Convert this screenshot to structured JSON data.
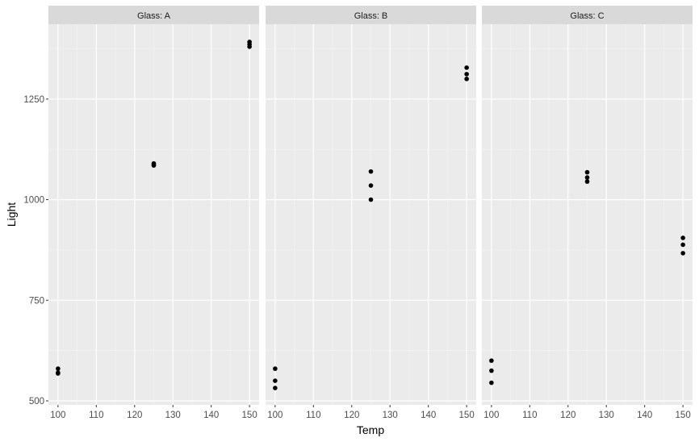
{
  "chart_data": {
    "type": "scatter",
    "title": "",
    "xlabel": "Temp",
    "ylabel": "Light",
    "facet_variable": "Glass",
    "xlim": [
      97.5,
      152.5
    ],
    "ylim": [
      490,
      1436
    ],
    "x_ticks": [
      100,
      110,
      120,
      130,
      140,
      150
    ],
    "y_ticks": [
      500,
      750,
      1000,
      1250
    ],
    "grid": true,
    "legend": "none",
    "panels": [
      {
        "label": "Glass: A",
        "points": [
          {
            "x": 100,
            "y": 580
          },
          {
            "x": 100,
            "y": 568
          },
          {
            "x": 100,
            "y": 570
          },
          {
            "x": 125,
            "y": 1090
          },
          {
            "x": 125,
            "y": 1085
          },
          {
            "x": 125,
            "y": 1087
          },
          {
            "x": 150,
            "y": 1392
          },
          {
            "x": 150,
            "y": 1380
          },
          {
            "x": 150,
            "y": 1386
          }
        ]
      },
      {
        "label": "Glass: B",
        "points": [
          {
            "x": 100,
            "y": 580
          },
          {
            "x": 100,
            "y": 550
          },
          {
            "x": 100,
            "y": 532
          },
          {
            "x": 125,
            "y": 1070
          },
          {
            "x": 125,
            "y": 1035
          },
          {
            "x": 125,
            "y": 1000
          },
          {
            "x": 150,
            "y": 1328
          },
          {
            "x": 150,
            "y": 1312
          },
          {
            "x": 150,
            "y": 1300
          }
        ]
      },
      {
        "label": "Glass: C",
        "points": [
          {
            "x": 100,
            "y": 600
          },
          {
            "x": 100,
            "y": 575
          },
          {
            "x": 100,
            "y": 545
          },
          {
            "x": 125,
            "y": 1068
          },
          {
            "x": 125,
            "y": 1055
          },
          {
            "x": 125,
            "y": 1045
          },
          {
            "x": 150,
            "y": 905
          },
          {
            "x": 150,
            "y": 888
          },
          {
            "x": 150,
            "y": 867
          }
        ]
      }
    ]
  },
  "colors": {
    "panel_background": "#ebebeb",
    "strip_background": "#d9d9d9",
    "grid_major": "#ffffff",
    "grid_minor": "#f5f5f5",
    "point": "#000000",
    "tick_label": "#4d4d4d",
    "tick_mark": "#333333"
  }
}
